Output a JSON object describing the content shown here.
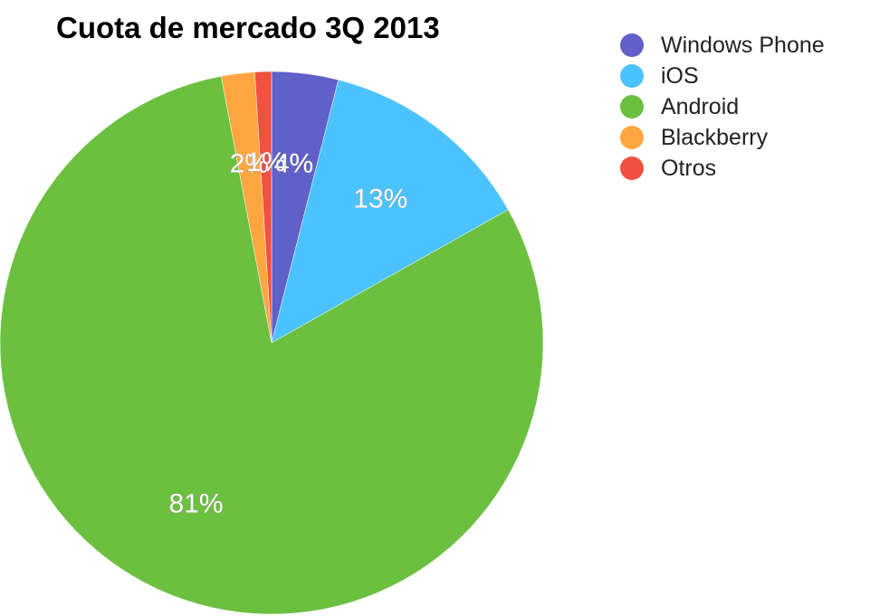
{
  "chart_data": {
    "type": "pie",
    "title": "Cuota de mercado 3Q 2013",
    "legend_position": "top-right",
    "slices": [
      {
        "name": "Windows Phone",
        "value": 4,
        "label": "4%",
        "color": "#6060c8"
      },
      {
        "name": "iOS",
        "value": 13,
        "label": "13%",
        "color": "#4cc3ff"
      },
      {
        "name": "Android",
        "value": 81,
        "label": "81%",
        "color": "#6cc040"
      },
      {
        "name": "Blackberry",
        "value": 2,
        "label": "2%",
        "color": "#ffa640"
      },
      {
        "name": "Otros",
        "value": 1,
        "label": "1%",
        "color": "#f25040"
      }
    ]
  }
}
